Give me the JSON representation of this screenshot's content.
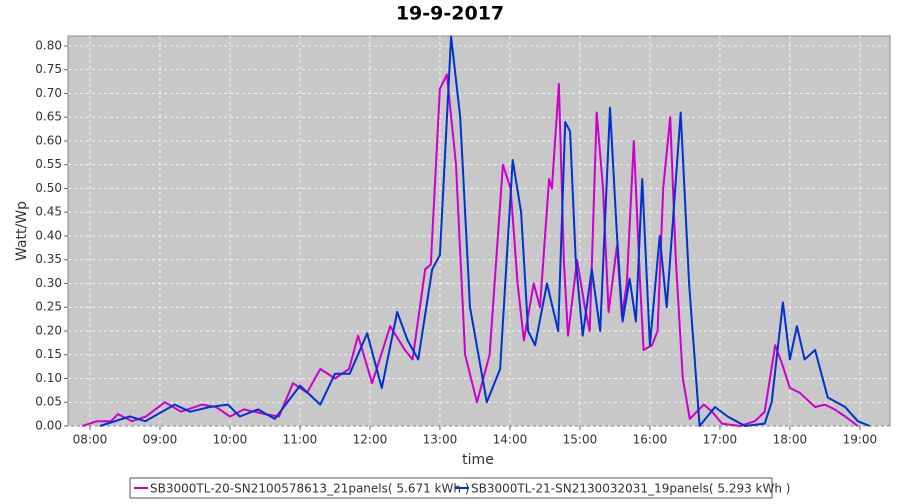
{
  "chart_data": {
    "type": "line",
    "title": "19-9-2017",
    "x_label": "time",
    "y_label": "Watt/Wp",
    "xlim": [
      7.686,
      19.43
    ],
    "ylim": [
      0,
      0.821
    ],
    "xticks": [
      {
        "value": 8,
        "label": "08:00"
      },
      {
        "value": 9,
        "label": "09:00"
      },
      {
        "value": 10,
        "label": "10:00"
      },
      {
        "value": 11,
        "label": "11:00"
      },
      {
        "value": 12,
        "label": "12:00"
      },
      {
        "value": 13,
        "label": "13:00"
      },
      {
        "value": 14,
        "label": "14:00"
      },
      {
        "value": 15,
        "label": "15:00"
      },
      {
        "value": 16,
        "label": "16:00"
      },
      {
        "value": 17,
        "label": "17:00"
      },
      {
        "value": 18,
        "label": "18:00"
      },
      {
        "value": 19,
        "label": "19:00"
      }
    ],
    "yticks": [
      {
        "value": 0,
        "label": "0.00"
      },
      {
        "value": 0.05,
        "label": "0.05"
      },
      {
        "value": 0.1,
        "label": "0.10"
      },
      {
        "value": 0.15,
        "label": "0.15"
      },
      {
        "value": 0.2,
        "label": "0.20"
      },
      {
        "value": 0.25,
        "label": "0.25"
      },
      {
        "value": 0.3,
        "label": "0.30"
      },
      {
        "value": 0.35,
        "label": "0.35"
      },
      {
        "value": 0.4,
        "label": "0.40"
      },
      {
        "value": 0.45,
        "label": "0.45"
      },
      {
        "value": 0.5,
        "label": "0.50"
      },
      {
        "value": 0.55,
        "label": "0.55"
      },
      {
        "value": 0.6,
        "label": "0.60"
      },
      {
        "value": 0.65,
        "label": "0.65"
      },
      {
        "value": 0.7,
        "label": "0.70"
      },
      {
        "value": 0.75,
        "label": "0.75"
      },
      {
        "value": 0.8,
        "label": "0.80"
      }
    ],
    "grid": true,
    "series": [
      {
        "name": "SB3000TL-20-SN2100578613_21panels( 5.671 kWh )",
        "color": "#cc00cc",
        "x": [
          7.89,
          8.1,
          8.3,
          8.4,
          8.6,
          8.8,
          9.07,
          9.3,
          9.6,
          9.8,
          10.0,
          10.2,
          10.5,
          10.7,
          10.9,
          11.1,
          11.29,
          11.5,
          11.7,
          11.83,
          12.03,
          12.29,
          12.5,
          12.61,
          12.79,
          12.87,
          13.0,
          13.1,
          13.23,
          13.36,
          13.53,
          13.71,
          13.9,
          14.01,
          14.11,
          14.2,
          14.34,
          14.43,
          14.56,
          14.6,
          14.7,
          14.77,
          14.83,
          14.96,
          15.07,
          15.14,
          15.24,
          15.33,
          15.41,
          15.53,
          15.6,
          15.67,
          15.77,
          15.86,
          15.91,
          16.03,
          16.11,
          16.19,
          16.29,
          16.37,
          16.47,
          16.57,
          16.67,
          16.77,
          16.89,
          17.03,
          17.29,
          17.5,
          17.64,
          17.79,
          17.89,
          18.0,
          18.14,
          18.36,
          18.5,
          18.64,
          18.79,
          18.97
        ],
        "values": [
          0.0,
          0.01,
          0.01,
          0.025,
          0.01,
          0.02,
          0.05,
          0.03,
          0.045,
          0.04,
          0.02,
          0.035,
          0.025,
          0.02,
          0.09,
          0.07,
          0.12,
          0.1,
          0.12,
          0.19,
          0.09,
          0.21,
          0.16,
          0.14,
          0.33,
          0.34,
          0.71,
          0.74,
          0.55,
          0.15,
          0.05,
          0.15,
          0.55,
          0.5,
          0.3,
          0.18,
          0.3,
          0.25,
          0.52,
          0.5,
          0.72,
          0.35,
          0.19,
          0.35,
          0.25,
          0.2,
          0.66,
          0.5,
          0.24,
          0.38,
          0.23,
          0.3,
          0.6,
          0.3,
          0.16,
          0.17,
          0.2,
          0.5,
          0.65,
          0.35,
          0.1,
          0.015,
          0.03,
          0.045,
          0.03,
          0.005,
          0.0,
          0.01,
          0.03,
          0.17,
          0.13,
          0.08,
          0.07,
          0.04,
          0.045,
          0.035,
          0.02,
          0.0
        ]
      },
      {
        "name": "SB3000TL-21-SN2130032031_19panels( 5.293 kWh )",
        "color": "#0033cc",
        "x": [
          8.14,
          8.57,
          8.79,
          9.21,
          9.43,
          9.71,
          9.97,
          10.14,
          10.4,
          10.64,
          11.0,
          11.29,
          11.5,
          11.71,
          11.96,
          12.17,
          12.39,
          12.54,
          12.69,
          12.89,
          13.0,
          13.16,
          13.29,
          13.43,
          13.67,
          13.86,
          14.04,
          14.16,
          14.26,
          14.36,
          14.53,
          14.69,
          14.79,
          14.86,
          14.94,
          15.04,
          15.17,
          15.29,
          15.43,
          15.53,
          15.61,
          15.71,
          15.8,
          15.89,
          16.0,
          16.14,
          16.24,
          16.44,
          16.56,
          16.71,
          16.93,
          17.11,
          17.36,
          17.64,
          17.74,
          17.9,
          18.0,
          18.1,
          18.21,
          18.36,
          18.54,
          18.79,
          18.97,
          19.14
        ],
        "values": [
          0.0,
          0.02,
          0.01,
          0.045,
          0.03,
          0.04,
          0.045,
          0.02,
          0.035,
          0.015,
          0.085,
          0.045,
          0.11,
          0.11,
          0.195,
          0.08,
          0.24,
          0.18,
          0.14,
          0.33,
          0.36,
          0.82,
          0.65,
          0.25,
          0.05,
          0.12,
          0.56,
          0.45,
          0.2,
          0.17,
          0.3,
          0.2,
          0.64,
          0.62,
          0.35,
          0.19,
          0.33,
          0.2,
          0.67,
          0.4,
          0.22,
          0.31,
          0.22,
          0.52,
          0.17,
          0.4,
          0.25,
          0.66,
          0.3,
          0.0,
          0.04,
          0.02,
          0.0,
          0.005,
          0.05,
          0.26,
          0.14,
          0.21,
          0.14,
          0.16,
          0.06,
          0.04,
          0.01,
          0.0
        ]
      }
    ]
  }
}
